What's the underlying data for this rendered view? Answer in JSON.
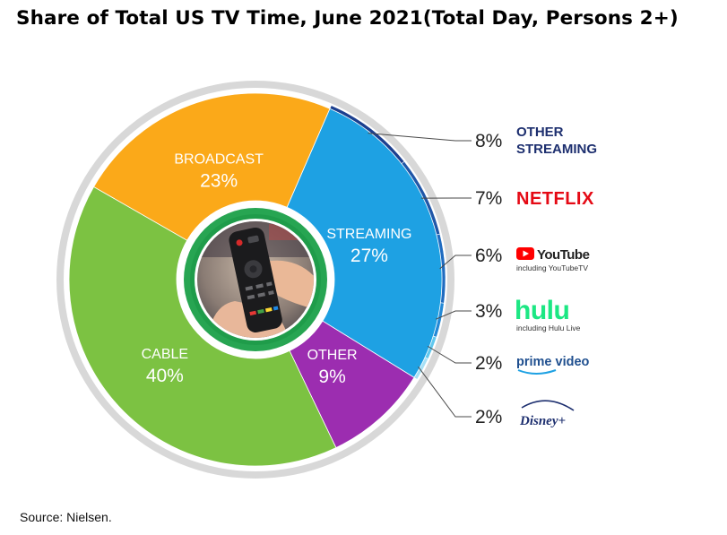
{
  "title": "Share of Total US TV Time, June 2021(Total Day, Persons 2+)",
  "source": "Source: Nielsen.",
  "colors": {
    "broadcast": "#FBA919",
    "cable": "#7CC242",
    "other": "#9C2DB0",
    "streaming": "#1EA1E3",
    "other_streaming": "#1B3F8F",
    "netflix": "#1F56A8",
    "youtube": "#1F6BC0",
    "hulu": "#2389D6",
    "prime_video": "#61C8EE",
    "disney_plus": "#A6E0F5",
    "netflix_text": "#E50914",
    "youtube_red": "#FF0000",
    "hulu_green": "#1CE783",
    "dark_navy": "#1D2F6F"
  },
  "chart_data": {
    "type": "pie",
    "title": "Share of Total US TV Time, June 2021(Total Day, Persons 2+)",
    "slices": [
      {
        "name": "STREAMING",
        "value": 27,
        "label": "27%"
      },
      {
        "name": "OTHER",
        "value": 9,
        "label": "9%"
      },
      {
        "name": "CABLE",
        "value": 40,
        "label": "40%"
      },
      {
        "name": "BROADCAST",
        "value": 23,
        "label": "23%"
      }
    ],
    "streaming_breakdown": [
      {
        "name": "OTHER STREAMING",
        "value": 8,
        "label": "8%"
      },
      {
        "name": "NETFLIX",
        "value": 7,
        "label": "7%"
      },
      {
        "name": "YouTube",
        "value": 6,
        "label": "6%",
        "note": "including YouTubeTV"
      },
      {
        "name": "hulu",
        "value": 3,
        "label": "3%",
        "note": "including Hulu Live"
      },
      {
        "name": "prime video",
        "value": 2,
        "label": "2%"
      },
      {
        "name": "Disney+",
        "value": 2,
        "label": "2%"
      }
    ]
  },
  "legend": {
    "other_streaming_line1": "OTHER",
    "other_streaming_line2": "STREAMING",
    "netflix": "NETFLIX",
    "youtube": "YouTube",
    "youtube_note": "including YouTubeTV",
    "hulu": "hulu",
    "hulu_note": "including Hulu Live",
    "prime": "prime video",
    "disney": "Disney+"
  }
}
